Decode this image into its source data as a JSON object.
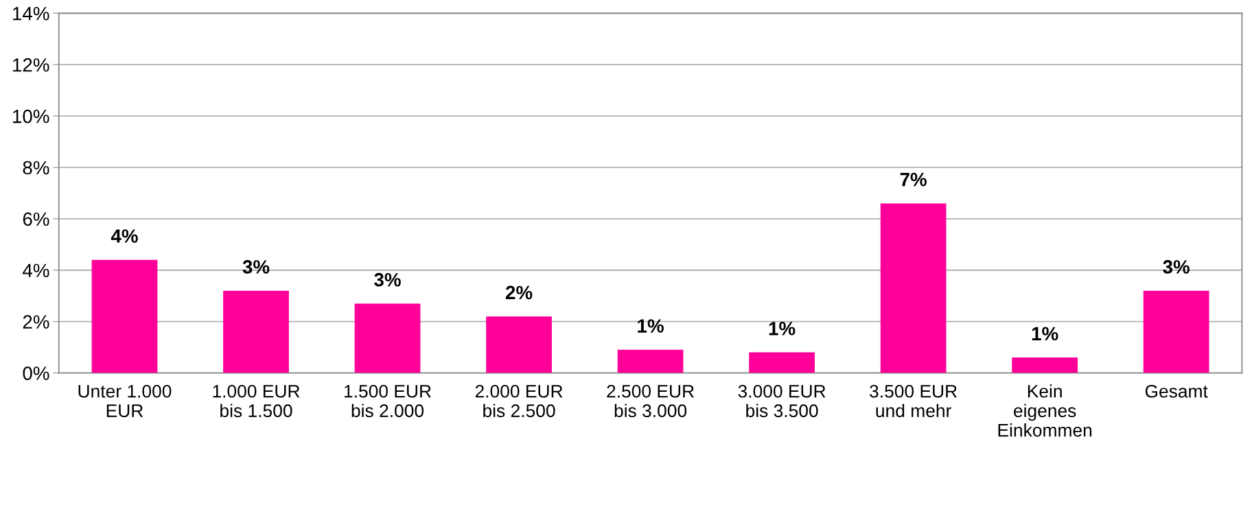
{
  "chart_data": {
    "type": "bar",
    "categories": [
      "Unter 1.000\nEUR",
      "1.000 EUR\nbis 1.500",
      "1.500 EUR\nbis 2.000",
      "2.000 EUR\nbis 2.500",
      "2.500 EUR\nbis 3.000",
      "3.000 EUR\nbis 3.500",
      "3.500 EUR\nund mehr",
      "Kein\neigenes\nEinkommen",
      "Gesamt"
    ],
    "values": [
      4.4,
      3.2,
      2.7,
      2.2,
      0.9,
      0.8,
      6.6,
      0.6,
      3.2
    ],
    "value_labels": [
      "4%",
      "3%",
      "3%",
      "2%",
      "1%",
      "1%",
      "7%",
      "1%",
      "3%"
    ],
    "color": "#ff0099",
    "ylim": [
      0,
      14
    ],
    "yticks": [
      {
        "value": 0,
        "label": "0%"
      },
      {
        "value": 2,
        "label": "2%"
      },
      {
        "value": 4,
        "label": "4%"
      },
      {
        "value": 6,
        "label": "6%"
      },
      {
        "value": 8,
        "label": "8%"
      },
      {
        "value": 10,
        "label": "10%"
      },
      {
        "value": 12,
        "label": "12%"
      },
      {
        "value": 14,
        "label": "14%"
      }
    ],
    "grid": "y",
    "legend": false
  }
}
